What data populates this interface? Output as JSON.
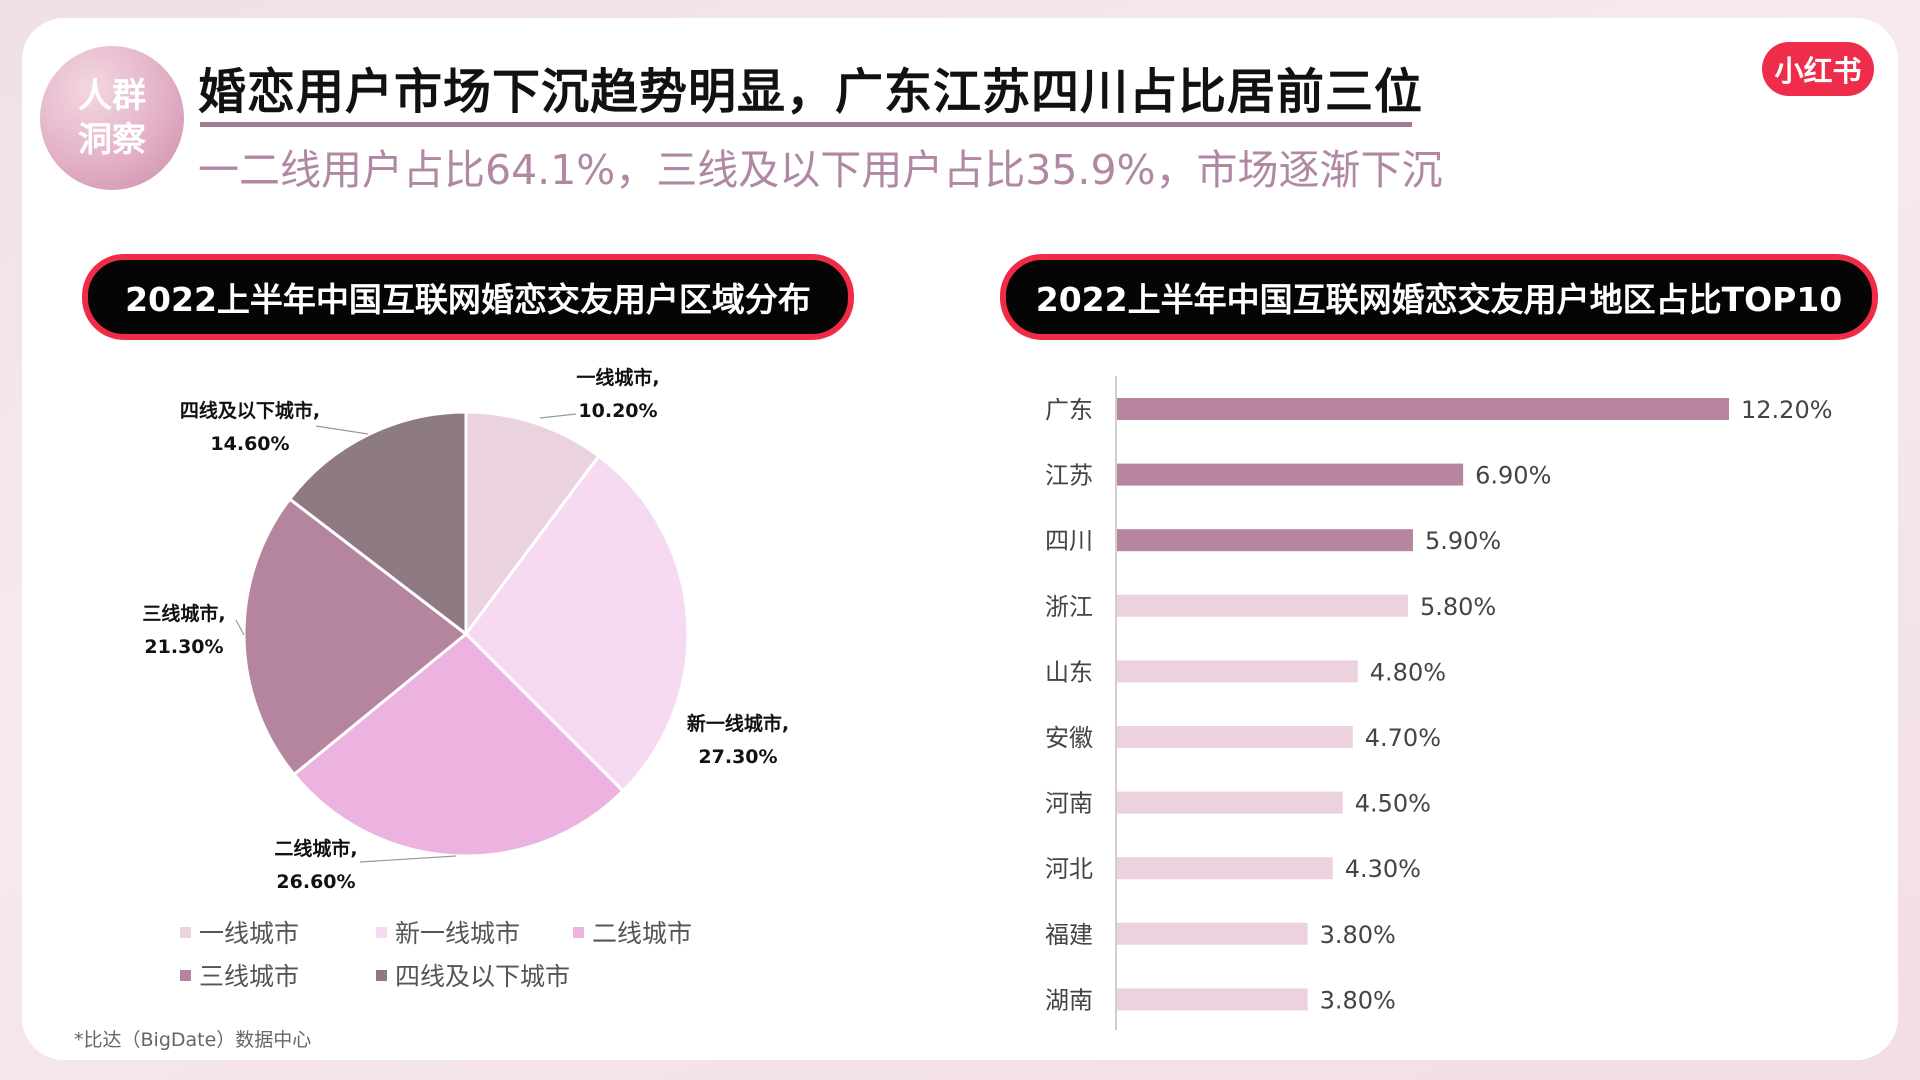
{
  "header": {
    "badge_line1": "人群",
    "badge_line2": "洞察",
    "title": "婚恋用户市场下沉趋势明显，广东江苏四川占比居前三位",
    "subtitle": "一二线用户占比64.1%，三线及以下用户占比35.9%，市场逐渐下沉",
    "logo": "小红书"
  },
  "source": "*比达（BigDate）数据中心",
  "chart_data": [
    {
      "type": "pie",
      "title": "2022上半年中国互联网婚恋交友用户区域分布",
      "slices": [
        {
          "label": "一线城市",
          "value": 10.2,
          "display": "10.20%",
          "color": "#ead3de"
        },
        {
          "label": "新一线城市",
          "value": 27.3,
          "display": "27.30%",
          "color": "#f6daf2"
        },
        {
          "label": "二线城市",
          "value": 26.6,
          "display": "26.60%",
          "color": "#ecb3e0"
        },
        {
          "label": "三线城市",
          "value": 21.3,
          "display": "21.30%",
          "color": "#b5849f"
        },
        {
          "label": "四线及以下城市",
          "value": 14.6,
          "display": "14.60%",
          "color": "#8e7a82"
        }
      ],
      "legend": [
        "一线城市",
        "新一线城市",
        "二线城市",
        "三线城市",
        "四线及以下城市"
      ]
    },
    {
      "type": "bar",
      "orientation": "horizontal",
      "title": "2022上半年中国互联网婚恋交友用户地区占比TOP10",
      "categories": [
        "广东",
        "江苏",
        "四川",
        "浙江",
        "山东",
        "安徽",
        "河南",
        "河北",
        "福建",
        "湖南"
      ],
      "values": [
        12.2,
        6.9,
        5.9,
        5.8,
        4.8,
        4.7,
        4.5,
        4.3,
        3.8,
        3.8
      ],
      "labels": [
        "12.20%",
        "6.90%",
        "5.90%",
        "5.80%",
        "4.80%",
        "4.70%",
        "4.50%",
        "4.30%",
        "3.80%",
        "3.80%"
      ],
      "highlight_color": "#b8859f",
      "base_color": "#ecd1df",
      "highlight_count": 3
    }
  ]
}
